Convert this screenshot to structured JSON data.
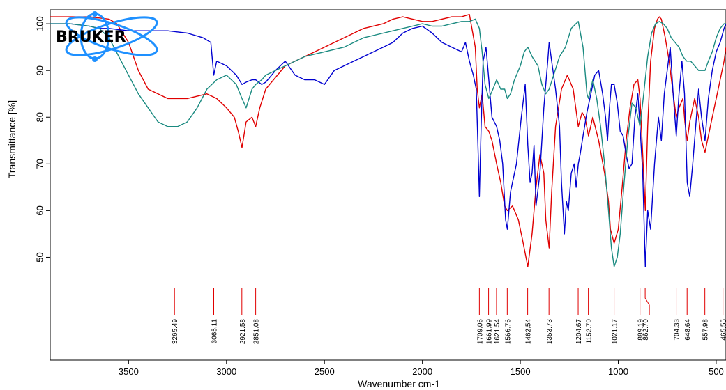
{
  "chart_data": {
    "type": "line",
    "title": "",
    "xlabel": "Wavenumber cm-1",
    "ylabel": "Transmittance [%]",
    "xlim": [
      3900,
      450
    ],
    "ylim": [
      28,
      103
    ],
    "x_ticks": [
      3500,
      3000,
      2500,
      2000,
      1500,
      1000,
      500
    ],
    "y_ticks": [
      50,
      60,
      70,
      80,
      90,
      100
    ],
    "grid": false,
    "legend": "none",
    "logo_text": "BRUKER",
    "peak_labels": [
      "3265.49",
      "3065.11",
      "2921.58",
      "2851.08",
      "1709.06",
      "1661.99",
      "1621.54",
      "1566.76",
      "1462.54",
      "1353.73",
      "1204.67",
      "1152.79",
      "1021.17",
      "889.19",
      "862.70",
      "704.33",
      "648.64",
      "557.98",
      "465.55"
    ],
    "peak_positions": [
      3265.49,
      3065.11,
      2921.58,
      2851.08,
      1709.06,
      1661.99,
      1621.54,
      1566.76,
      1462.54,
      1353.73,
      1204.67,
      1152.79,
      1021.17,
      889.19,
      862.7,
      704.33,
      648.64,
      557.98,
      465.55
    ],
    "series": [
      {
        "color": "#e00000",
        "x": [
          3900,
          3800,
          3700,
          3600,
          3560,
          3500,
          3450,
          3400,
          3300,
          3200,
          3100,
          3050,
          3000,
          2960,
          2940,
          2921,
          2900,
          2870,
          2851,
          2830,
          2800,
          2700,
          2600,
          2500,
          2400,
          2300,
          2200,
          2150,
          2100,
          2050,
          2000,
          1950,
          1900,
          1850,
          1800,
          1760,
          1730,
          1720,
          1709,
          1695,
          1680,
          1661,
          1645,
          1621,
          1600,
          1580,
          1566,
          1540,
          1510,
          1490,
          1462,
          1440,
          1420,
          1400,
          1380,
          1370,
          1353,
          1340,
          1320,
          1290,
          1260,
          1230,
          1204,
          1185,
          1170,
          1152,
          1130,
          1100,
          1070,
          1050,
          1040,
          1021,
          1000,
          980,
          960,
          940,
          920,
          900,
          889,
          875,
          862,
          850,
          835,
          815,
          800,
          790,
          780,
          760,
          740,
          720,
          704,
          690,
          670,
          660,
          648,
          635,
          610,
          590,
          575,
          557,
          540,
          520,
          500,
          480,
          460,
          450
        ],
        "y": [
          101.5,
          101.5,
          101.5,
          101,
          100,
          96,
          90,
          86,
          84,
          84,
          85,
          84,
          82,
          80,
          77,
          73.5,
          79,
          80,
          78,
          82,
          86,
          91,
          93,
          95,
          97,
          99,
          100,
          101,
          101.5,
          101,
          100.5,
          100.5,
          101,
          101.5,
          101.5,
          102,
          95,
          86,
          82,
          85,
          78,
          77,
          75,
          70,
          66,
          61,
          60,
          61,
          58,
          54,
          48,
          55,
          65,
          72,
          68,
          58,
          52,
          64,
          78,
          86,
          89,
          86,
          78,
          81,
          80,
          76,
          80,
          75,
          68,
          62,
          56,
          53,
          56,
          65,
          75,
          82,
          87,
          88,
          84,
          72,
          60,
          78,
          92,
          99,
          101,
          101.5,
          101,
          97,
          92,
          85,
          80,
          82,
          84,
          79,
          75,
          79,
          84,
          80,
          75,
          72.5,
          76,
          80,
          84,
          88,
          92,
          95
        ]
      },
      {
        "color": "#0000d0",
        "x": [
          3900,
          3800,
          3700,
          3650,
          3600,
          3500,
          3400,
          3300,
          3200,
          3120,
          3080,
          3065,
          3050,
          3000,
          2950,
          2921,
          2900,
          2870,
          2851,
          2820,
          2800,
          2750,
          2700,
          2650,
          2600,
          2550,
          2500,
          2450,
          2400,
          2300,
          2200,
          2150,
          2100,
          2050,
          2000,
          1950,
          1900,
          1850,
          1800,
          1780,
          1760,
          1740,
          1725,
          1715,
          1709,
          1700,
          1690,
          1675,
          1661,
          1645,
          1621,
          1605,
          1590,
          1575,
          1566,
          1550,
          1520,
          1495,
          1475,
          1462,
          1450,
          1440,
          1430,
          1420,
          1400,
          1380,
          1360,
          1353,
          1340,
          1320,
          1300,
          1290,
          1275,
          1265,
          1255,
          1240,
          1225,
          1215,
          1204,
          1195,
          1180,
          1160,
          1140,
          1120,
          1100,
          1080,
          1065,
          1055,
          1045,
          1035,
          1021,
          1005,
          990,
          975,
          960,
          945,
          930,
          915,
          900,
          889,
          875,
          862,
          850,
          835,
          815,
          795,
          780,
          765,
          750,
          735,
          720,
          704,
          690,
          675,
          662,
          648,
          635,
          620,
          605,
          590,
          575,
          557,
          540,
          520,
          500,
          480,
          460,
          450
        ],
        "y": [
          100,
          100,
          99.5,
          99,
          99,
          98.5,
          98.5,
          98.5,
          98,
          97,
          96,
          89,
          92,
          91,
          89,
          87,
          87.5,
          88,
          88,
          87,
          87.5,
          90,
          92,
          89,
          88,
          88,
          87,
          90,
          91,
          93,
          95,
          96,
          98,
          99,
          99.5,
          98,
          96,
          95,
          94,
          96,
          92,
          89,
          86,
          72,
          63,
          78,
          92,
          95,
          88,
          80,
          78,
          75,
          70,
          58,
          56,
          64,
          70,
          80,
          87,
          74,
          66,
          68,
          74,
          61,
          68,
          82,
          92,
          96,
          92,
          86,
          78,
          66,
          55,
          62,
          60,
          68,
          70,
          65,
          70,
          72,
          76,
          81,
          85,
          89,
          90,
          85,
          80,
          75,
          82,
          87,
          87,
          83,
          77,
          76,
          72,
          69,
          70,
          80,
          85,
          78,
          68,
          48,
          60,
          56,
          70,
          80,
          75,
          85,
          90,
          95,
          85,
          76,
          85,
          92,
          85,
          66,
          63,
          70,
          78,
          86,
          80,
          75,
          84,
          90,
          94,
          96,
          99,
          100
        ]
      },
      {
        "color": "#1a8a80",
        "x": [
          3900,
          3800,
          3700,
          3650,
          3600,
          3550,
          3500,
          3450,
          3400,
          3350,
          3300,
          3250,
          3200,
          3150,
          3100,
          3050,
          3000,
          2950,
          2921,
          2900,
          2870,
          2851,
          2820,
          2800,
          2750,
          2700,
          2600,
          2500,
          2400,
          2300,
          2200,
          2150,
          2100,
          2050,
          2000,
          1950,
          1900,
          1850,
          1800,
          1760,
          1730,
          1709,
          1695,
          1680,
          1661,
          1640,
          1621,
          1600,
          1580,
          1566,
          1550,
          1530,
          1500,
          1480,
          1462,
          1440,
          1410,
          1390,
          1370,
          1353,
          1330,
          1300,
          1270,
          1240,
          1204,
          1180,
          1160,
          1152,
          1130,
          1110,
          1090,
          1070,
          1050,
          1035,
          1021,
          1005,
          990,
          970,
          950,
          930,
          910,
          889,
          870,
          850,
          830,
          810,
          790,
          770,
          750,
          730,
          710,
          690,
          670,
          650,
          630,
          610,
          590,
          575,
          557,
          540,
          520,
          500,
          480,
          460,
          450
        ],
        "y": [
          100,
          100,
          99.5,
          99,
          97,
          93,
          89,
          85,
          82,
          79,
          78,
          78,
          79,
          82,
          86,
          88,
          89,
          87,
          84,
          82,
          86,
          87,
          88,
          89,
          90,
          91,
          93,
          94,
          95,
          97,
          98,
          98.5,
          99,
          99.5,
          100,
          99.5,
          99.5,
          100,
          100.5,
          100.5,
          101,
          99,
          94,
          87,
          84,
          86,
          88,
          86,
          86,
          84,
          85,
          88,
          91,
          94,
          95,
          93,
          91,
          87,
          85,
          86,
          89,
          93,
          95,
          99,
          100.5,
          95,
          85,
          84,
          88,
          84,
          78,
          70,
          60,
          52,
          48,
          50,
          55,
          66,
          76,
          83,
          82,
          78,
          85,
          93,
          98,
          100,
          100.5,
          100,
          99,
          97,
          96,
          95,
          93,
          92,
          92,
          91,
          90,
          90,
          90,
          92,
          94,
          97,
          99,
          100,
          100
        ]
      }
    ]
  }
}
